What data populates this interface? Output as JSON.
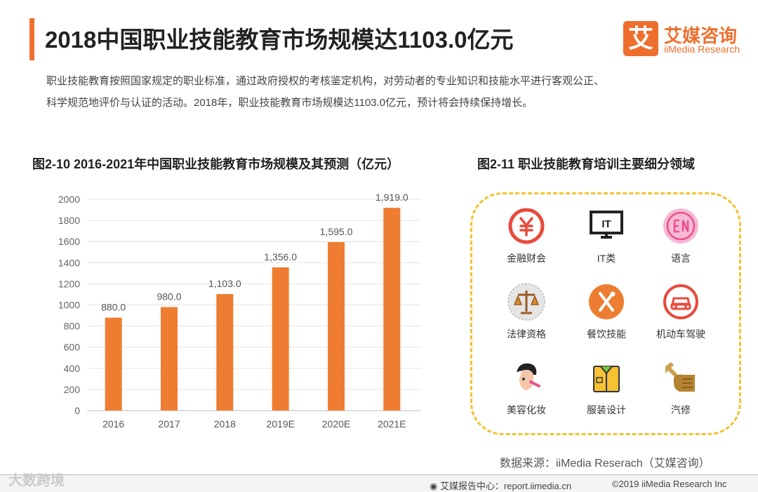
{
  "header": {
    "title": "2018中国职业技能教育市场规模达1103.0亿元",
    "logo_mark": "艾",
    "logo_cn": "艾媒咨询",
    "logo_en": "iiMedia Research"
  },
  "description": {
    "line1": "职业技能教育按照国家规定的职业标准，通过政府授权的考核鉴定机构，对劳动者的专业知识和技能水平进行客观公正、",
    "line2": "科学规范地评价与认证的活动。2018年，职业技能教育市场规模达1103.0亿元，预计将会持续保持增长。"
  },
  "chart_data": {
    "type": "bar",
    "title": "图2-10 2016-2021年中国职业技能教育市场规模及其预测（亿元）",
    "categories": [
      "2016",
      "2017",
      "2018",
      "2019E",
      "2020E",
      "2021E"
    ],
    "values": [
      880.0,
      980.0,
      1103.0,
      1356.0,
      1595.0,
      1919.0
    ],
    "value_labels": [
      "880.0",
      "980.0",
      "1,103.0",
      "1,356.0",
      "1,595.0",
      "1,919.0"
    ],
    "ylim": [
      0,
      2000
    ],
    "yticks": [
      0,
      200,
      400,
      600,
      800,
      1000,
      1200,
      1400,
      1600,
      1800,
      2000
    ],
    "xlabel": "",
    "ylabel": "",
    "grid": true,
    "bar_color": "#ee7d31"
  },
  "fields_panel": {
    "title": "图2-11  职业技能教育培训主要细分领域",
    "items": [
      {
        "label": "金融财会",
        "icon": "yuan-icon"
      },
      {
        "label": "IT类",
        "icon": "monitor-icon"
      },
      {
        "label": "语言",
        "icon": "language-icon"
      },
      {
        "label": "法律资格",
        "icon": "scales-icon"
      },
      {
        "label": "餐饮技能",
        "icon": "fork-knife-icon"
      },
      {
        "label": "机动车驾驶",
        "icon": "car-icon"
      },
      {
        "label": "美容化妆",
        "icon": "makeup-face-icon"
      },
      {
        "label": "服装设计",
        "icon": "shirt-icon"
      },
      {
        "label": "汽修",
        "icon": "wrench-hand-icon"
      }
    ]
  },
  "source": "数据来源：iiMedia Reserach（艾媒咨询）",
  "footer": {
    "left": "艾媒报告中心：report.iimedia.cn",
    "right": "©2019  iiMedia Research  Inc"
  },
  "watermark": "大数跨境",
  "colors": {
    "accent": "#ee6f2d",
    "bar": "#ee7d31",
    "panel_border": "#f2c230"
  }
}
